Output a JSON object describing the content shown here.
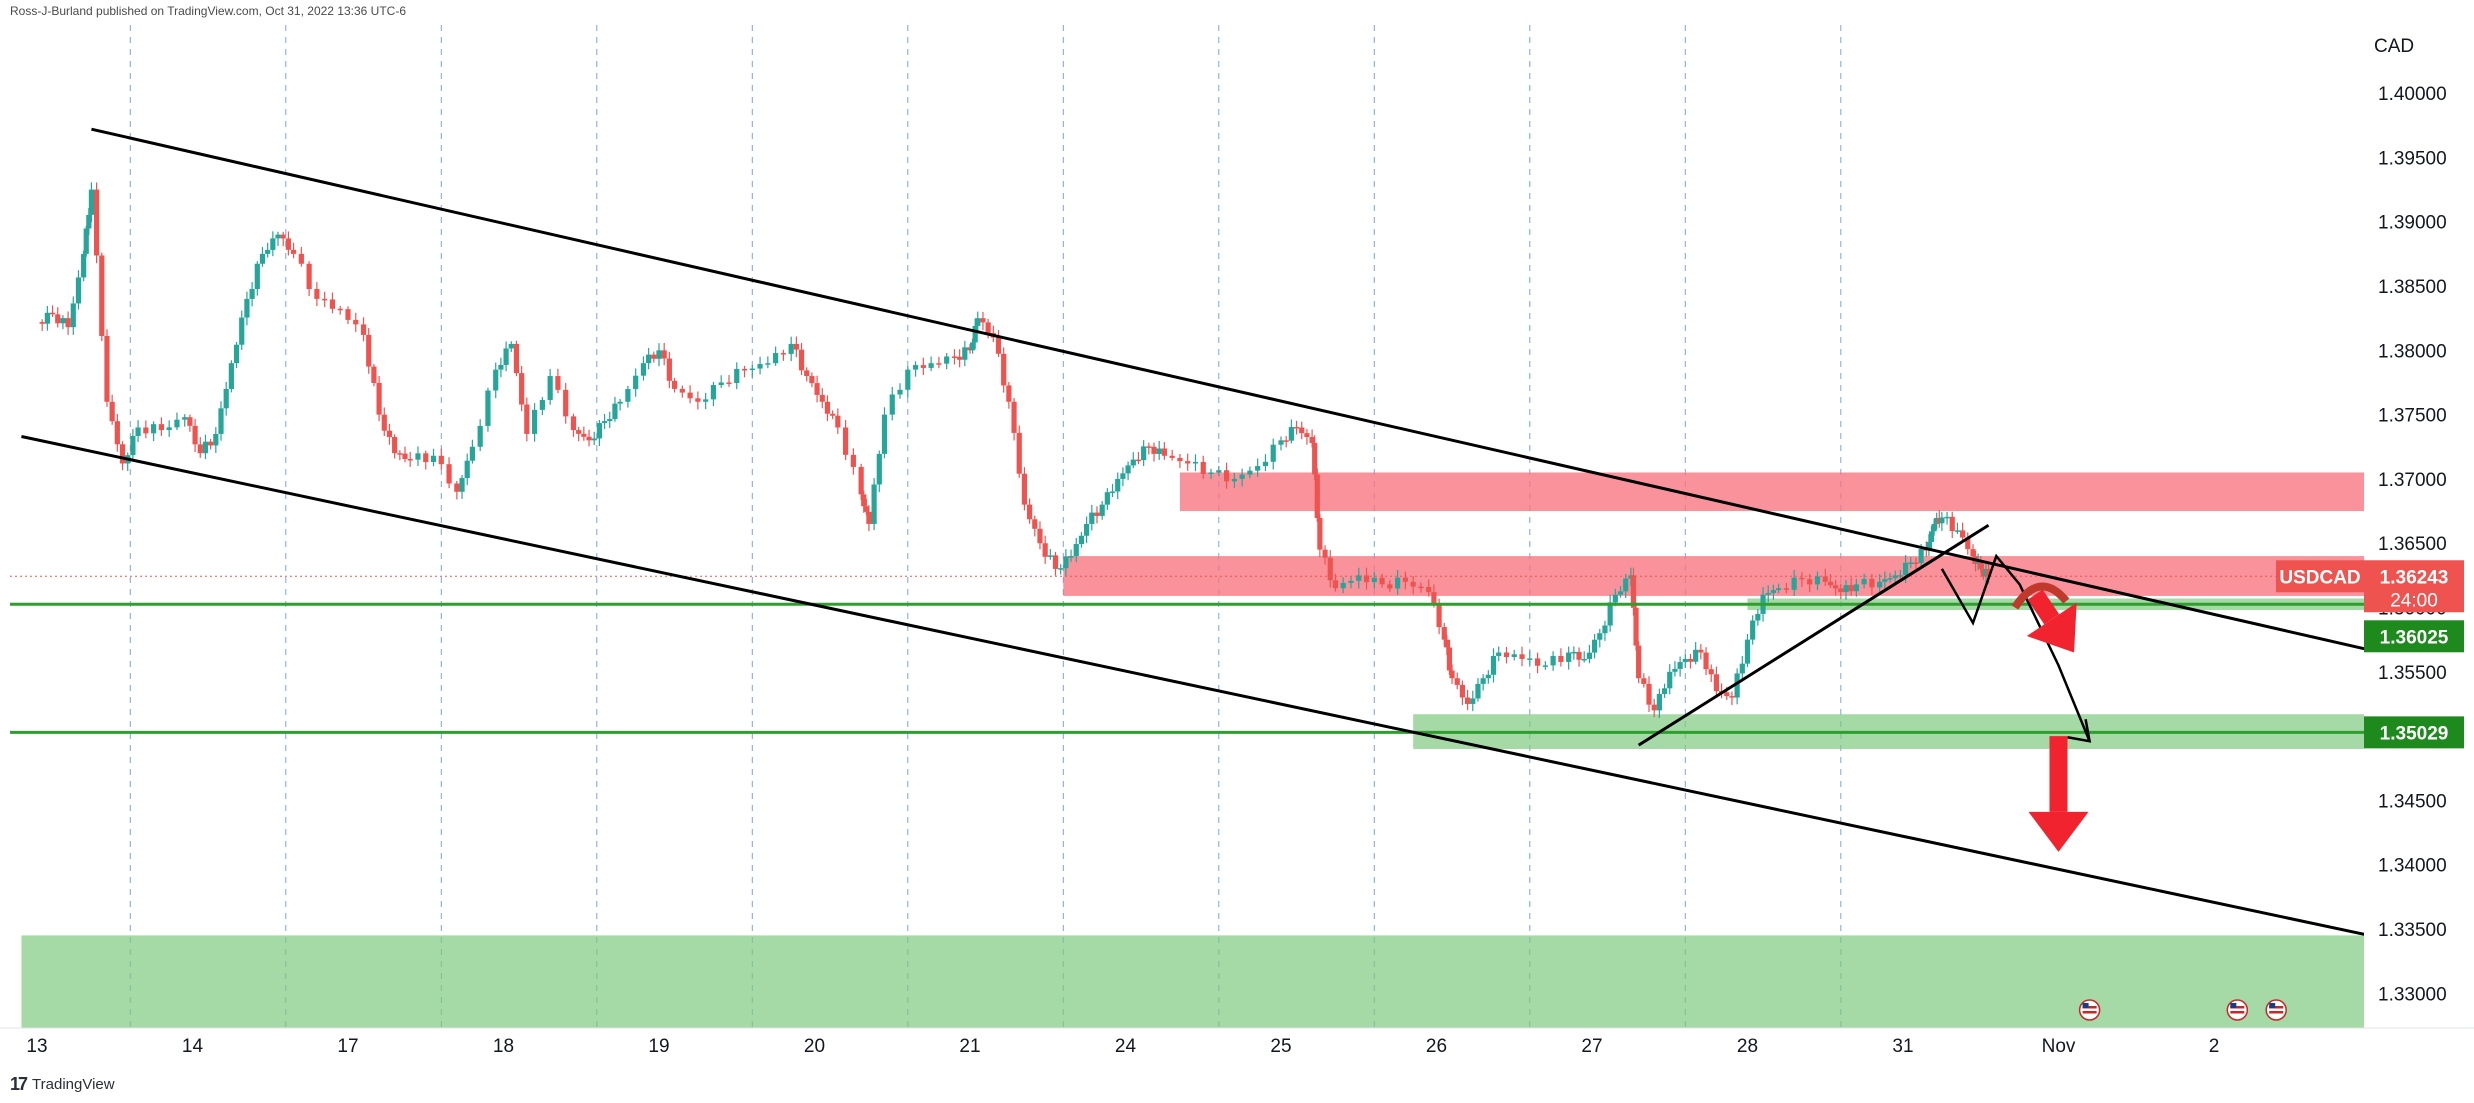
{
  "header": {
    "published": "Ross-J-Burland published on TradingView.com, Oct 31, 2022 13:36 UTC-6"
  },
  "footer": {
    "brand": "TradingView"
  },
  "colors": {
    "up": "#26a69a",
    "down": "#ef5350",
    "resistance": "#f7737f",
    "support": "#7fc97f",
    "support_line": "#2e9e2e",
    "arrow": "#f0232e",
    "channel": "#000000"
  },
  "chart_data": {
    "type": "candlestick",
    "symbol": "USDCAD",
    "currency_label": "CAD",
    "last_price": "1.36243",
    "countdown": "24:00",
    "price_tags": [
      "1.36025",
      "1.35029"
    ],
    "y_ticks": [
      "1.40000",
      "1.39500",
      "1.39000",
      "1.38500",
      "1.38000",
      "1.37500",
      "1.37000",
      "1.36500",
      "1.36000",
      "1.35500",
      "1.35000",
      "1.34500",
      "1.34000",
      "1.33500",
      "1.33000"
    ],
    "y_tick_values": [
      1.4,
      1.395,
      1.39,
      1.385,
      1.38,
      1.375,
      1.37,
      1.365,
      1.36,
      1.355,
      1.35,
      1.345,
      1.34,
      1.335,
      1.33
    ],
    "ylim": [
      1.3273,
      1.4053
    ],
    "x_ticks": [
      "13",
      "14",
      "17",
      "18",
      "19",
      "20",
      "21",
      "24",
      "25",
      "26",
      "27",
      "28",
      "31",
      "Nov",
      "2"
    ],
    "x_tick_index": [
      0,
      1,
      2,
      3,
      4,
      5,
      6,
      7,
      8,
      9,
      10,
      11,
      12,
      13,
      14
    ],
    "day_boundaries": [
      0.6,
      1.6,
      2.6,
      3.6,
      4.6,
      5.6,
      6.6,
      7.6,
      8.6,
      9.6,
      10.6,
      11.6
    ],
    "session_closes": [
      [
        0.0,
        1.3822
      ],
      [
        0.1,
        1.3828
      ],
      [
        0.2,
        1.3818
      ],
      [
        0.3,
        1.3875
      ],
      [
        0.35,
        1.3925
      ],
      [
        0.45,
        1.376
      ],
      [
        0.55,
        1.3712
      ],
      [
        0.65,
        1.374
      ],
      [
        0.8,
        1.3738
      ],
      [
        0.95,
        1.3748
      ],
      [
        1.05,
        1.372
      ],
      [
        1.15,
        1.3735
      ],
      [
        1.25,
        1.379
      ],
      [
        1.35,
        1.384
      ],
      [
        1.45,
        1.3875
      ],
      [
        1.55,
        1.389
      ],
      [
        1.65,
        1.3875
      ],
      [
        1.8,
        1.384
      ],
      [
        1.95,
        1.3832
      ],
      [
        2.1,
        1.3812
      ],
      [
        2.2,
        1.375
      ],
      [
        2.3,
        1.372
      ],
      [
        2.4,
        1.3715
      ],
      [
        2.55,
        1.3718
      ],
      [
        2.7,
        1.369
      ],
      [
        2.8,
        1.3725
      ],
      [
        2.95,
        1.3785
      ],
      [
        3.05,
        1.3805
      ],
      [
        3.15,
        1.3735
      ],
      [
        3.3,
        1.378
      ],
      [
        3.45,
        1.3738
      ],
      [
        3.55,
        1.373
      ],
      [
        3.65,
        1.3745
      ],
      [
        3.75,
        1.376
      ],
      [
        3.9,
        1.379
      ],
      [
        4.0,
        1.38
      ],
      [
        4.1,
        1.377
      ],
      [
        4.25,
        1.376
      ],
      [
        4.4,
        1.3775
      ],
      [
        4.55,
        1.3785
      ],
      [
        4.7,
        1.379
      ],
      [
        4.85,
        1.3805
      ],
      [
        4.95,
        1.378
      ],
      [
        5.05,
        1.376
      ],
      [
        5.15,
        1.374
      ],
      [
        5.3,
        1.3688
      ],
      [
        5.35,
        1.3665
      ],
      [
        5.45,
        1.375
      ],
      [
        5.6,
        1.3785
      ],
      [
        5.75,
        1.379
      ],
      [
        5.9,
        1.3795
      ],
      [
        6.0,
        1.38
      ],
      [
        6.05,
        1.3825
      ],
      [
        6.15,
        1.381
      ],
      [
        6.25,
        1.376
      ],
      [
        6.35,
        1.368
      ],
      [
        6.45,
        1.365
      ],
      [
        6.55,
        1.363
      ],
      [
        6.65,
        1.364
      ],
      [
        6.75,
        1.3665
      ],
      [
        6.85,
        1.368
      ],
      [
        6.95,
        1.37
      ],
      [
        7.05,
        1.3715
      ],
      [
        7.15,
        1.3725
      ],
      [
        7.25,
        1.3718
      ],
      [
        7.4,
        1.3712
      ],
      [
        7.55,
        1.3705
      ],
      [
        7.7,
        1.37
      ],
      [
        7.85,
        1.371
      ],
      [
        8.0,
        1.373
      ],
      [
        8.1,
        1.374
      ],
      [
        8.2,
        1.3728
      ],
      [
        8.25,
        1.3645
      ],
      [
        8.35,
        1.3615
      ],
      [
        8.5,
        1.3625
      ],
      [
        8.65,
        1.3618
      ],
      [
        8.8,
        1.362
      ],
      [
        8.95,
        1.3612
      ],
      [
        9.05,
        1.3575
      ],
      [
        9.1,
        1.3545
      ],
      [
        9.2,
        1.3525
      ],
      [
        9.3,
        1.3545
      ],
      [
        9.4,
        1.3565
      ],
      [
        9.55,
        1.356
      ],
      [
        9.7,
        1.3555
      ],
      [
        9.85,
        1.3565
      ],
      [
        9.95,
        1.356
      ],
      [
        10.05,
        1.358
      ],
      [
        10.15,
        1.361
      ],
      [
        10.25,
        1.3625
      ],
      [
        10.3,
        1.3545
      ],
      [
        10.4,
        1.352
      ],
      [
        10.5,
        1.355
      ],
      [
        10.6,
        1.356
      ],
      [
        10.7,
        1.3565
      ],
      [
        10.8,
        1.3535
      ],
      [
        10.9,
        1.353
      ],
      [
        11.0,
        1.3575
      ],
      [
        11.1,
        1.361
      ],
      [
        11.2,
        1.3615
      ],
      [
        11.35,
        1.3622
      ],
      [
        11.5,
        1.362
      ],
      [
        11.6,
        1.3612
      ],
      [
        11.7,
        1.3618
      ],
      [
        11.85,
        1.362
      ],
      [
        11.95,
        1.3625
      ],
      [
        12.05,
        1.3635
      ],
      [
        12.15,
        1.3645
      ],
      [
        12.2,
        1.3665
      ],
      [
        12.25,
        1.367
      ],
      [
        12.35,
        1.366
      ],
      [
        12.45,
        1.364
      ],
      [
        12.5,
        1.363
      ],
      [
        12.55,
        1.3624
      ]
    ],
    "zones": [
      {
        "name": "resistance-upper",
        "low": 1.3675,
        "high": 1.3705,
        "from": 7.35,
        "color_key": "resistance"
      },
      {
        "name": "resistance-lower",
        "low": 1.3609,
        "high": 1.364,
        "from": 6.6,
        "color_key": "resistance"
      },
      {
        "name": "support-mid",
        "low": 1.3598,
        "high": 1.3607,
        "from": 11.0,
        "color_key": "support"
      },
      {
        "name": "support-lower",
        "low": 1.349,
        "high": 1.3517,
        "from": 8.85,
        "color_key": "support"
      },
      {
        "name": "support-bottom",
        "low": 1.3273,
        "high": 1.3345,
        "from": -0.1,
        "color_key": "support"
      }
    ],
    "hlines": [
      {
        "price": 1.35029
      },
      {
        "price": 1.36025
      }
    ],
    "trendlines": [
      {
        "from": [
          0.35,
          1.3972
        ],
        "to": [
          15.0,
          1.3567
        ]
      },
      {
        "from": [
          -0.1,
          1.3733
        ],
        "to": [
          15.0,
          1.3345
        ]
      },
      {
        "from": [
          10.3,
          1.3493
        ],
        "to": [
          12.55,
          1.3664
        ]
      }
    ],
    "projection_path": [
      [
        12.25,
        1.363
      ],
      [
        12.45,
        1.3588
      ],
      [
        12.6,
        1.364
      ],
      [
        12.75,
        1.3618
      ],
      [
        13.0,
        1.3555
      ],
      [
        13.2,
        1.3496
      ]
    ],
    "down_arrows": [
      {
        "from": [
          12.85,
          1.361
        ],
        "to": [
          13.1,
          1.3565
        ]
      },
      {
        "from": [
          13.0,
          1.35
        ],
        "to": [
          13.0,
          1.341
        ]
      }
    ]
  }
}
